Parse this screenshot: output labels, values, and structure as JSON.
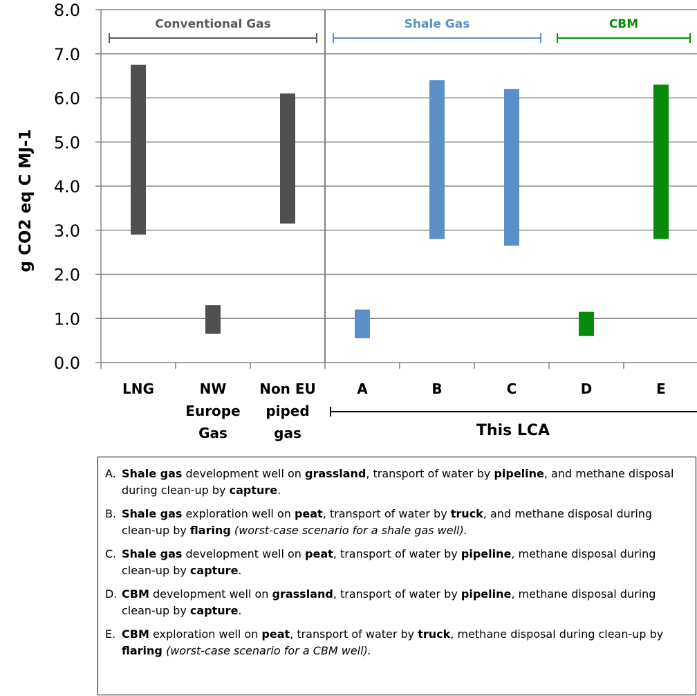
{
  "chart_data": {
    "type": "range-bar",
    "ylabel": "g CO2  eq C MJ-1",
    "ylim": [
      0,
      8
    ],
    "yticks": [
      "0.0",
      "1.0",
      "2.0",
      "3.0",
      "4.0",
      "5.0",
      "6.0",
      "7.0",
      "8.0"
    ],
    "categories": [
      [
        "LNG"
      ],
      [
        "NW",
        "Europe",
        "Gas"
      ],
      [
        "Non EU",
        "piped",
        "gas"
      ],
      [
        "A"
      ],
      [
        "B"
      ],
      [
        "C"
      ],
      [
        "D"
      ],
      [
        "E"
      ]
    ],
    "ranges": [
      [
        [
          2.9,
          6.75
        ]
      ],
      [
        [
          0.65,
          1.3
        ]
      ],
      [
        [
          3.15,
          6.1
        ]
      ],
      [
        [
          0.55,
          1.2
        ]
      ],
      [
        [
          2.8,
          6.4
        ]
      ],
      [
        [
          2.65,
          6.2
        ]
      ],
      [
        [
          0.6,
          1.15
        ]
      ],
      [
        [
          2.8,
          6.3
        ]
      ]
    ],
    "bar_colors": [
      "#4f4f4f",
      "#4f4f4f",
      "#4f4f4f",
      "#5b8fc7",
      "#5b8fc7",
      "#5b8fc7",
      "#0a8a0a",
      "#0a8a0a"
    ],
    "groups": [
      {
        "label": "Conventional Gas",
        "color": "#595959",
        "from": 0,
        "to": 2
      },
      {
        "label": "Shale Gas",
        "color": "#5b8fc7",
        "from": 3,
        "to": 5
      },
      {
        "label": "CBM",
        "color": "#0a8a0a",
        "from": 6,
        "to": 7
      }
    ],
    "bracket_label": "This LCA",
    "grid": true
  },
  "notes": [
    {
      "letter": "A.",
      "runs": [
        {
          "t": "Shale gas",
          "s": "b"
        },
        {
          "t": " development well on ",
          "s": ""
        },
        {
          "t": "grassland",
          "s": "b"
        },
        {
          "t": ", transport of water by ",
          "s": ""
        },
        {
          "t": "pipeline",
          "s": "b"
        },
        {
          "t": ", and methane disposal during clean-up by ",
          "s": ""
        },
        {
          "t": "capture",
          "s": "b"
        },
        {
          "t": ".",
          "s": ""
        }
      ]
    },
    {
      "letter": "B.",
      "runs": [
        {
          "t": "Shale gas",
          "s": "b"
        },
        {
          "t": " exploration well on ",
          "s": ""
        },
        {
          "t": "peat",
          "s": "b"
        },
        {
          "t": ", transport of water by ",
          "s": ""
        },
        {
          "t": "truck",
          "s": "b"
        },
        {
          "t": ", and methane disposal during clean-up by ",
          "s": ""
        },
        {
          "t": "flaring",
          "s": "b"
        },
        {
          "t": " (worst-case scenario for a shale gas well).",
          "s": "i"
        }
      ]
    },
    {
      "letter": "C.",
      "runs": [
        {
          "t": "Shale gas",
          "s": "b"
        },
        {
          "t": " development well on ",
          "s": ""
        },
        {
          "t": "peat",
          "s": "b"
        },
        {
          "t": ", transport of water by ",
          "s": ""
        },
        {
          "t": "pipeline",
          "s": "b"
        },
        {
          "t": ", methane disposal during clean-up by ",
          "s": ""
        },
        {
          "t": "capture",
          "s": "b"
        },
        {
          "t": ".",
          "s": ""
        }
      ]
    },
    {
      "letter": "D.",
      "runs": [
        {
          "t": "CBM",
          "s": "b"
        },
        {
          "t": " development well on ",
          "s": ""
        },
        {
          "t": "grassland",
          "s": "b"
        },
        {
          "t": ", transport of water by ",
          "s": ""
        },
        {
          "t": "pipeline",
          "s": "b"
        },
        {
          "t": ", methane disposal during clean-up by ",
          "s": ""
        },
        {
          "t": "capture",
          "s": "b"
        },
        {
          "t": ".",
          "s": ""
        }
      ]
    },
    {
      "letter": "E.",
      "runs": [
        {
          "t": "CBM",
          "s": "b"
        },
        {
          "t": " exploration well on ",
          "s": ""
        },
        {
          "t": "peat",
          "s": "b"
        },
        {
          "t": ", transport of water by ",
          "s": ""
        },
        {
          "t": "truck",
          "s": "b"
        },
        {
          "t": ", methane disposal during clean-up by ",
          "s": ""
        },
        {
          "t": "flaring",
          "s": "b"
        },
        {
          "t": " (worst-case scenario for a CBM well).",
          "s": "i"
        }
      ]
    }
  ]
}
